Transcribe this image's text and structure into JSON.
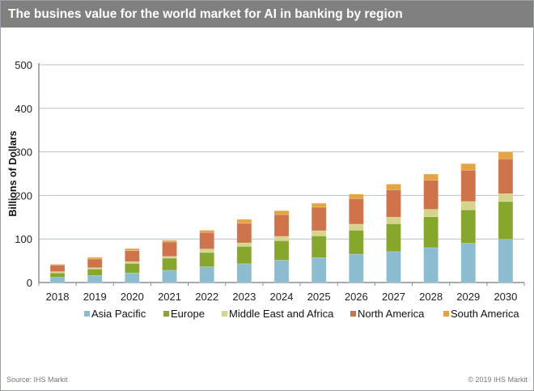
{
  "chart_data": {
    "type": "bar",
    "stacked": true,
    "title": "The busines value for the world market for AI in banking by region",
    "xlabel": "",
    "ylabel": "Billions of Dollars",
    "ylim": [
      0,
      500
    ],
    "yticks": [
      0,
      100,
      200,
      300,
      400,
      500
    ],
    "grid": true,
    "legend_position": "bottom",
    "categories": [
      "2018",
      "2019",
      "2020",
      "2021",
      "2022",
      "2023",
      "2024",
      "2025",
      "2026",
      "2027",
      "2028",
      "2029",
      "2030"
    ],
    "series": [
      {
        "name": "Asia Pacific",
        "color": "#8bbcd0",
        "values": [
          12,
          16,
          22,
          28,
          36,
          43,
          51,
          57,
          65,
          71,
          80,
          90,
          99
        ]
      },
      {
        "name": "Europe",
        "color": "#86a62c",
        "values": [
          10,
          15,
          22,
          28,
          33,
          40,
          45,
          50,
          55,
          64,
          71,
          77,
          87
        ]
      },
      {
        "name": "Middle East and Africa",
        "color": "#d4d48c",
        "values": [
          3,
          3,
          4,
          4,
          8,
          8,
          10,
          12,
          14,
          15,
          17,
          19,
          18
        ]
      },
      {
        "name": "North America",
        "color": "#cf734a",
        "values": [
          15,
          20,
          25,
          33,
          38,
          45,
          50,
          54,
          59,
          63,
          67,
          72,
          80
        ]
      },
      {
        "name": "South America",
        "color": "#e5a440",
        "values": [
          2,
          4,
          5,
          4,
          5,
          9,
          9,
          9,
          10,
          13,
          14,
          15,
          16
        ]
      }
    ]
  },
  "footer": {
    "source": "Source: IHS Markit",
    "copyright": "© 2019 IHS Markit"
  }
}
